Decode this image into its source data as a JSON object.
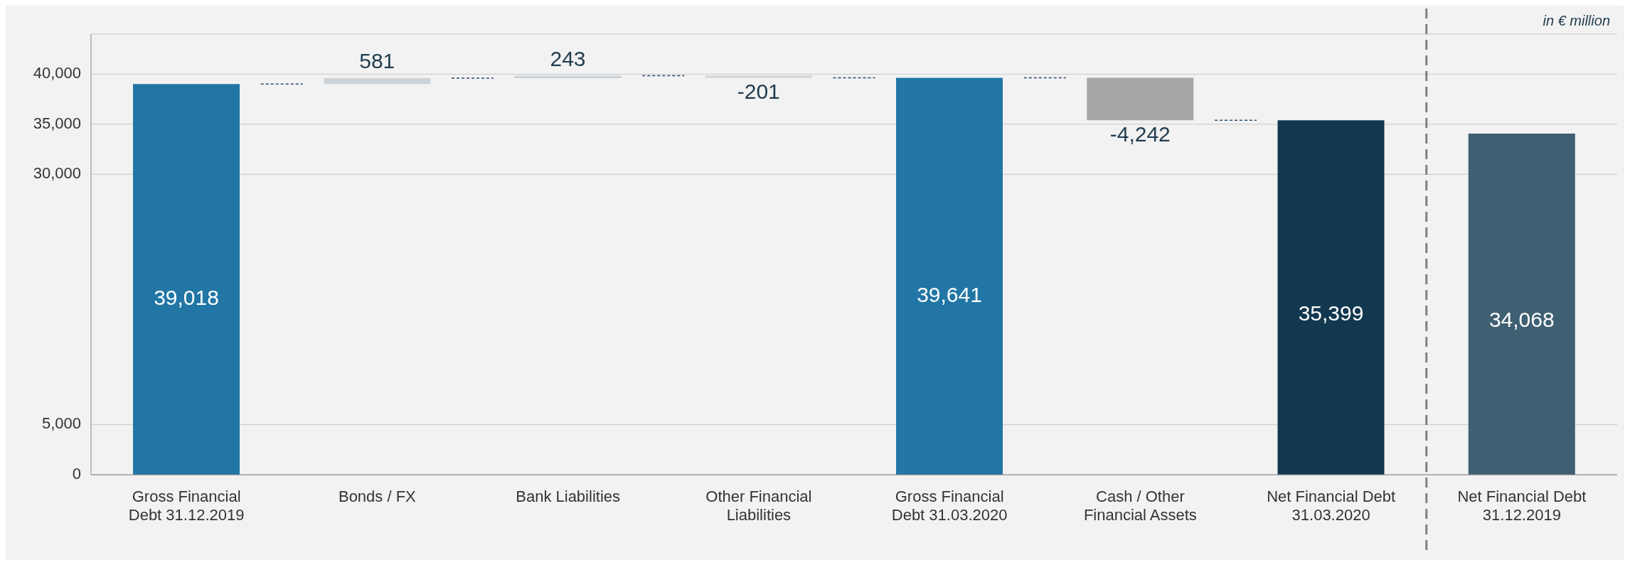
{
  "chart_data": {
    "type": "bar",
    "categories": [
      "Gross Financial Debt 31.12.2019",
      "Bonds / FX",
      "Bank Liabilities",
      "Other Financial Liabilities",
      "Gross Financial Debt 31.03.2020",
      "Cash / Other Financial Assets",
      "Net Financial Debt 31.03.2020",
      "Net Financial Debt 31.12.2019"
    ],
    "values": [
      39018,
      581,
      243,
      -201,
      39641,
      -4242,
      35399,
      34068
    ],
    "base": [
      0,
      39018,
      39599,
      39842,
      0,
      39641,
      0,
      0
    ],
    "colors": [
      "#2176a5",
      "#ccd3d9",
      "#ccd3d9",
      "#ccd3d9",
      "#2176a5",
      "#a6a6a6",
      "#12384f",
      "#3f5f72"
    ],
    "value_labels": [
      "39,018",
      "581",
      "243",
      "-201",
      "39,641",
      "-4,242",
      "35,399",
      "34,068"
    ],
    "ylim": [
      0,
      44000
    ],
    "yticks": [
      0,
      {
        "value": 5000,
        "label": "5,000"
      },
      {
        "value": 30000,
        "label": "30,000"
      },
      {
        "value": 35000,
        "label": "35,000"
      },
      {
        "value": 40000,
        "label": "40,000"
      }
    ],
    "grid": "y",
    "annotations": [
      "in € million"
    ]
  }
}
